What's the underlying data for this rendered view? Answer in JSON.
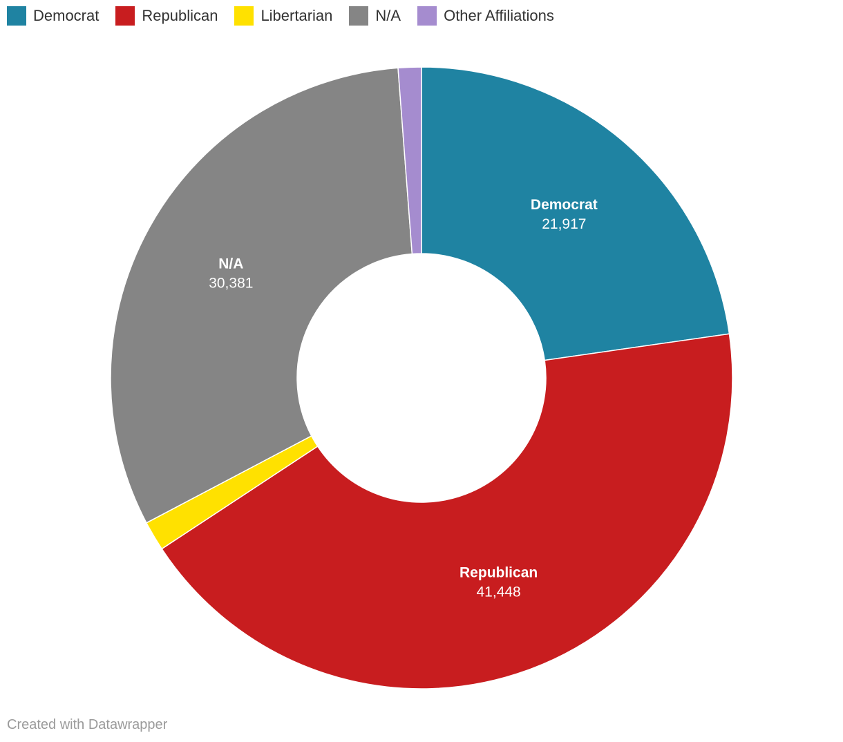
{
  "chart_data": {
    "type": "pie",
    "donut": true,
    "legend_position": "top-left",
    "categories": [
      "Democrat",
      "Republican",
      "Libertarian",
      "N/A",
      "Other Affiliations"
    ],
    "values": [
      21917,
      41448,
      1490,
      30381,
      1160
    ],
    "value_labels": [
      "21,917",
      "41,448",
      "",
      "30,381",
      ""
    ],
    "colors": [
      "#1f83a2",
      "#c81d1f",
      "#ffe100",
      "#858585",
      "#a58ccf"
    ]
  },
  "legend": [
    {
      "label": "Democrat",
      "color": "#1f83a2"
    },
    {
      "label": "Republican",
      "color": "#c81d1f"
    },
    {
      "label": "Libertarian",
      "color": "#ffe100"
    },
    {
      "label": "N/A",
      "color": "#858585"
    },
    {
      "label": "Other Affiliations",
      "color": "#a58ccf"
    }
  ],
  "footer": {
    "credit": "Created with Datawrapper"
  }
}
